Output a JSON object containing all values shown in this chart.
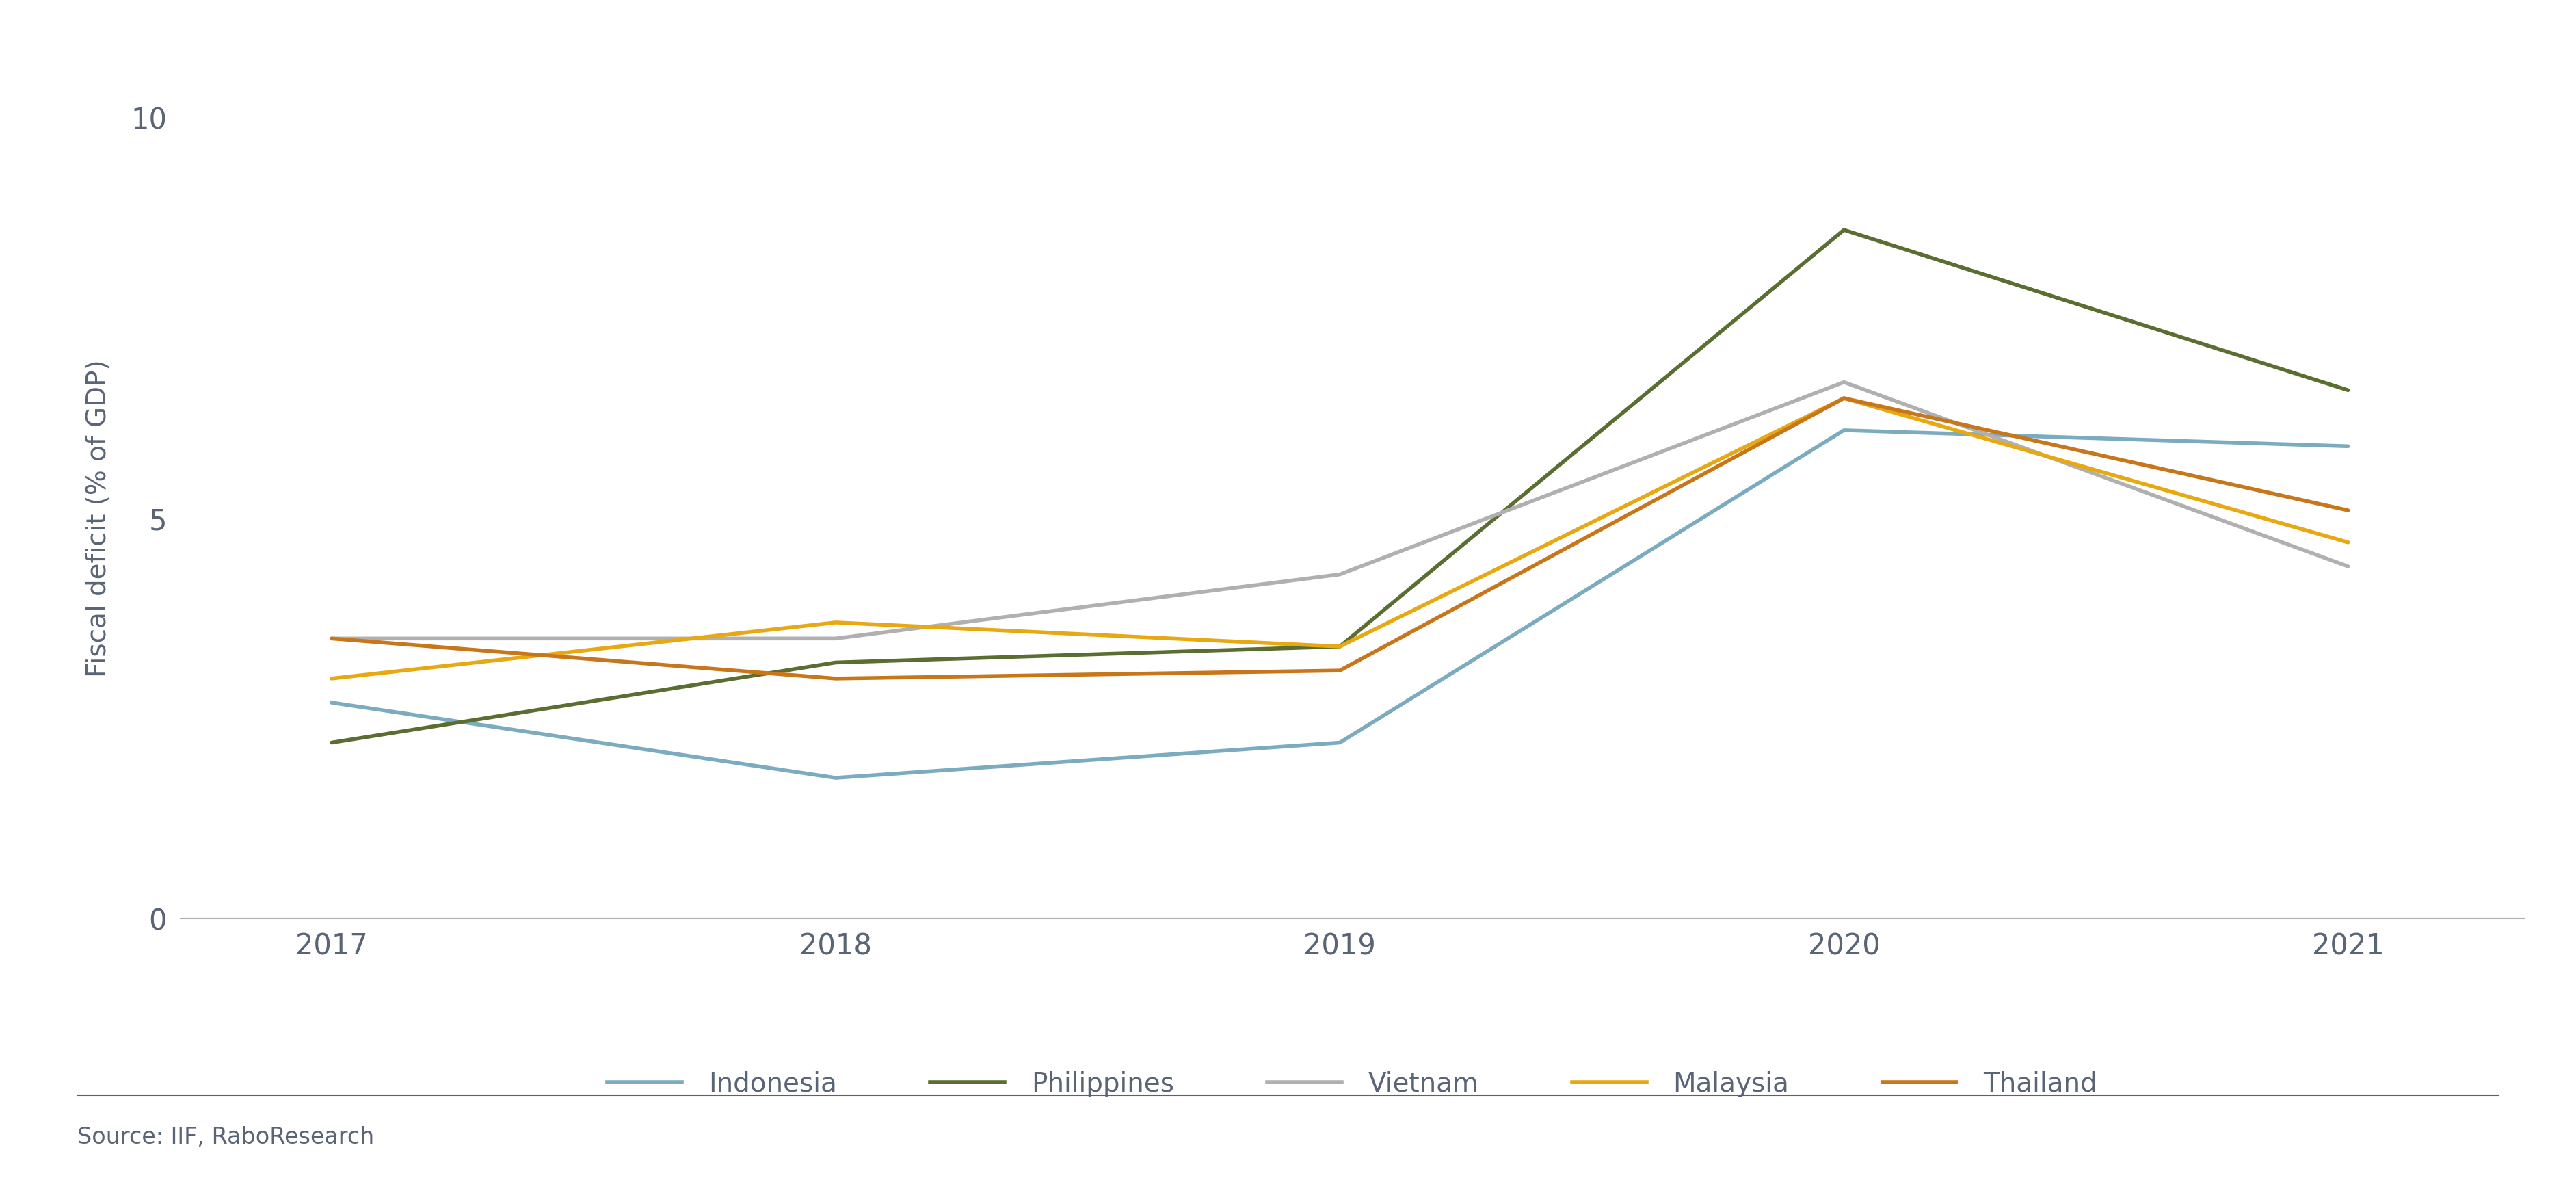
{
  "years": [
    2017,
    2018,
    2019,
    2020,
    2021
  ],
  "series": {
    "Indonesia": {
      "values": [
        2.7,
        1.76,
        2.2,
        6.1,
        5.9
      ],
      "color": "#7babbe",
      "linewidth": 4.0
    },
    "Philippines": {
      "values": [
        2.2,
        3.2,
        3.4,
        8.6,
        6.6
      ],
      "color": "#5a6e32",
      "linewidth": 4.0
    },
    "Vietnam": {
      "values": [
        3.5,
        3.5,
        4.3,
        6.7,
        4.4
      ],
      "color": "#b0b0b0",
      "linewidth": 4.0
    },
    "Malaysia": {
      "values": [
        3.0,
        3.7,
        3.4,
        6.5,
        4.7
      ],
      "color": "#e8a812",
      "linewidth": 4.0
    },
    "Thailand": {
      "values": [
        3.5,
        3.0,
        3.1,
        6.5,
        5.1
      ],
      "color": "#c8761a",
      "linewidth": 4.0
    }
  },
  "ylabel": "Fiscal deficit (% of GDP)",
  "ylim": [
    0,
    10
  ],
  "yticks": [
    0,
    5,
    10
  ],
  "xlim": [
    2016.7,
    2021.35
  ],
  "xticks": [
    2017,
    2018,
    2019,
    2020,
    2021
  ],
  "background_color": "#ffffff",
  "text_color": "#596475",
  "source_text": "Source: IIF, RaboResearch",
  "legend_order": [
    "Indonesia",
    "Philippines",
    "Vietnam",
    "Malaysia",
    "Thailand"
  ],
  "axis_line_color": "#b0b0b0",
  "tick_label_fontsize": 30,
  "axis_label_fontsize": 28,
  "legend_fontsize": 28,
  "source_fontsize": 24
}
